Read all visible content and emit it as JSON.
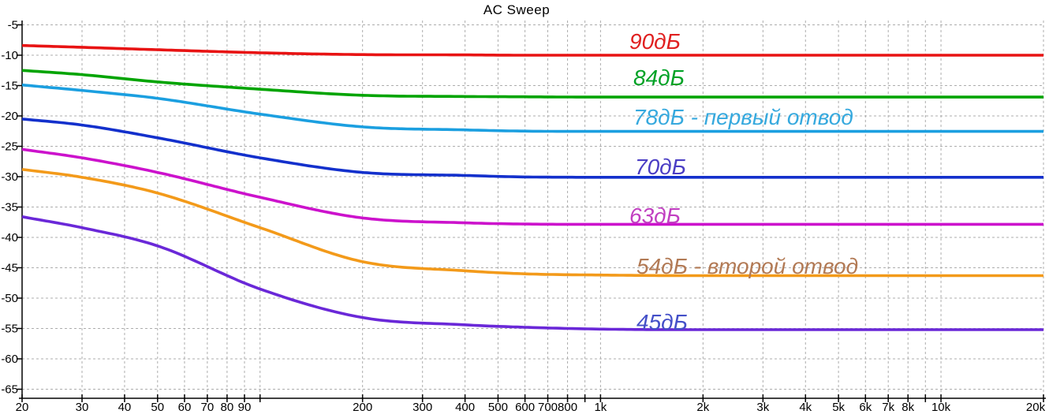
{
  "title": "AC Sweep",
  "colors": {
    "background": "#ffffff",
    "grid": "#adadad",
    "axis": "#000000",
    "tick_text": "#000000"
  },
  "chart_data": {
    "type": "line",
    "title": "AC Sweep",
    "x_axis": {
      "scale": "log",
      "unit": "Hz",
      "min": 20,
      "max": 20000,
      "grid": true,
      "ticks": [
        {
          "f": 20,
          "label": "20"
        },
        {
          "f": 30,
          "label": "30"
        },
        {
          "f": 40,
          "label": "40"
        },
        {
          "f": 50,
          "label": "50"
        },
        {
          "f": 60,
          "label": "60"
        },
        {
          "f": 70,
          "label": "70"
        },
        {
          "f": 80,
          "label": "80"
        },
        {
          "f": 90,
          "label": "90"
        },
        {
          "f": 100,
          "label": ""
        },
        {
          "f": 200,
          "label": "200"
        },
        {
          "f": 300,
          "label": "300"
        },
        {
          "f": 400,
          "label": "400"
        },
        {
          "f": 500,
          "label": "500"
        },
        {
          "f": 600,
          "label": "600"
        },
        {
          "f": 700,
          "label": "700"
        },
        {
          "f": 800,
          "label": "800"
        },
        {
          "f": 900,
          "label": ""
        },
        {
          "f": 1000,
          "label": "1k"
        },
        {
          "f": 2000,
          "label": "2k"
        },
        {
          "f": 3000,
          "label": "3k"
        },
        {
          "f": 4000,
          "label": "4k"
        },
        {
          "f": 5000,
          "label": "5k"
        },
        {
          "f": 6000,
          "label": "6k"
        },
        {
          "f": 7000,
          "label": "7k"
        },
        {
          "f": 8000,
          "label": "8k"
        },
        {
          "f": 9000,
          "label": ""
        },
        {
          "f": 10000,
          "label": "10k"
        },
        {
          "f": 20000,
          "label": "20k"
        }
      ]
    },
    "y_axis": {
      "unit": "dB",
      "min": -65,
      "max": -5,
      "step": 5,
      "grid": true,
      "ticks": [
        -5,
        -10,
        -15,
        -20,
        -25,
        -30,
        -35,
        -40,
        -45,
        -50,
        -55,
        -60,
        -65
      ]
    },
    "series": [
      {
        "name": "90dB",
        "label": "90дБ",
        "color": "#e81313",
        "label_color": "#e02020",
        "label_pos": [
          798,
          62
        ],
        "points": [
          [
            20,
            -8.4
          ],
          [
            30,
            -8.7
          ],
          [
            50,
            -9.1
          ],
          [
            100,
            -9.6
          ],
          [
            200,
            -9.9
          ],
          [
            400,
            -9.95
          ],
          [
            600,
            -10.0
          ],
          [
            1000,
            -10.0
          ],
          [
            2000,
            -10.0
          ],
          [
            20000,
            -10.0
          ]
        ]
      },
      {
        "name": "84dB",
        "label": "84дБ",
        "color": "#00a400",
        "label_color": "#00a226",
        "label_pos": [
          803,
          108
        ],
        "points": [
          [
            20,
            -12.5
          ],
          [
            30,
            -13.2
          ],
          [
            50,
            -14.4
          ],
          [
            100,
            -15.6
          ],
          [
            200,
            -16.6
          ],
          [
            400,
            -16.8
          ],
          [
            600,
            -16.85
          ],
          [
            1000,
            -16.9
          ],
          [
            2000,
            -16.9
          ],
          [
            20000,
            -16.9
          ]
        ]
      },
      {
        "name": "78dB-first-tap",
        "label": "78дБ - первый отвод",
        "color": "#1b9fe0",
        "label_color": "#36a9de",
        "label_pos": [
          803,
          158
        ],
        "points": [
          [
            20,
            -14.9
          ],
          [
            30,
            -15.8
          ],
          [
            50,
            -17.1
          ],
          [
            100,
            -19.7
          ],
          [
            200,
            -21.8
          ],
          [
            400,
            -22.3
          ],
          [
            600,
            -22.5
          ],
          [
            1000,
            -22.55
          ],
          [
            2000,
            -22.55
          ],
          [
            20000,
            -22.55
          ]
        ]
      },
      {
        "name": "70dB",
        "label": "70дБ",
        "color": "#1330cc",
        "label_color": "#4a3dc4",
        "label_pos": [
          805,
          221
        ],
        "points": [
          [
            20,
            -20.5
          ],
          [
            30,
            -21.5
          ],
          [
            50,
            -23.6
          ],
          [
            100,
            -26.9
          ],
          [
            200,
            -29.3
          ],
          [
            400,
            -29.8
          ],
          [
            600,
            -30.05
          ],
          [
            1000,
            -30.1
          ],
          [
            2000,
            -30.1
          ],
          [
            20000,
            -30.1
          ]
        ]
      },
      {
        "name": "63dB",
        "label": "63дБ",
        "color": "#cc12cc",
        "label_color": "#c13fc1",
        "label_pos": [
          798,
          283
        ],
        "points": [
          [
            20,
            -25.5
          ],
          [
            30,
            -26.9
          ],
          [
            50,
            -29.3
          ],
          [
            100,
            -33.4
          ],
          [
            200,
            -36.8
          ],
          [
            400,
            -37.6
          ],
          [
            600,
            -37.8
          ],
          [
            1000,
            -37.85
          ],
          [
            2000,
            -37.85
          ],
          [
            20000,
            -37.85
          ]
        ]
      },
      {
        "name": "54dB-second-tap",
        "label": "54дБ - второй отвод",
        "color": "#f39a1a",
        "label_color": "#b27a55",
        "label_pos": [
          807,
          347
        ],
        "points": [
          [
            20,
            -28.8
          ],
          [
            30,
            -30.1
          ],
          [
            50,
            -32.7
          ],
          [
            100,
            -38.4
          ],
          [
            200,
            -44.0
          ],
          [
            400,
            -45.5
          ],
          [
            600,
            -46.0
          ],
          [
            1000,
            -46.2
          ],
          [
            2000,
            -46.3
          ],
          [
            20000,
            -46.3
          ]
        ]
      },
      {
        "name": "45dB",
        "label": "45дБ",
        "color": "#6a28d8",
        "label_color": "#4450c8",
        "label_pos": [
          807,
          418
        ],
        "points": [
          [
            20,
            -36.6
          ],
          [
            30,
            -38.4
          ],
          [
            50,
            -41.4
          ],
          [
            100,
            -48.5
          ],
          [
            200,
            -53.2
          ],
          [
            400,
            -54.4
          ],
          [
            600,
            -54.8
          ],
          [
            1000,
            -55.1
          ],
          [
            2000,
            -55.2
          ],
          [
            20000,
            -55.2
          ]
        ]
      }
    ]
  }
}
